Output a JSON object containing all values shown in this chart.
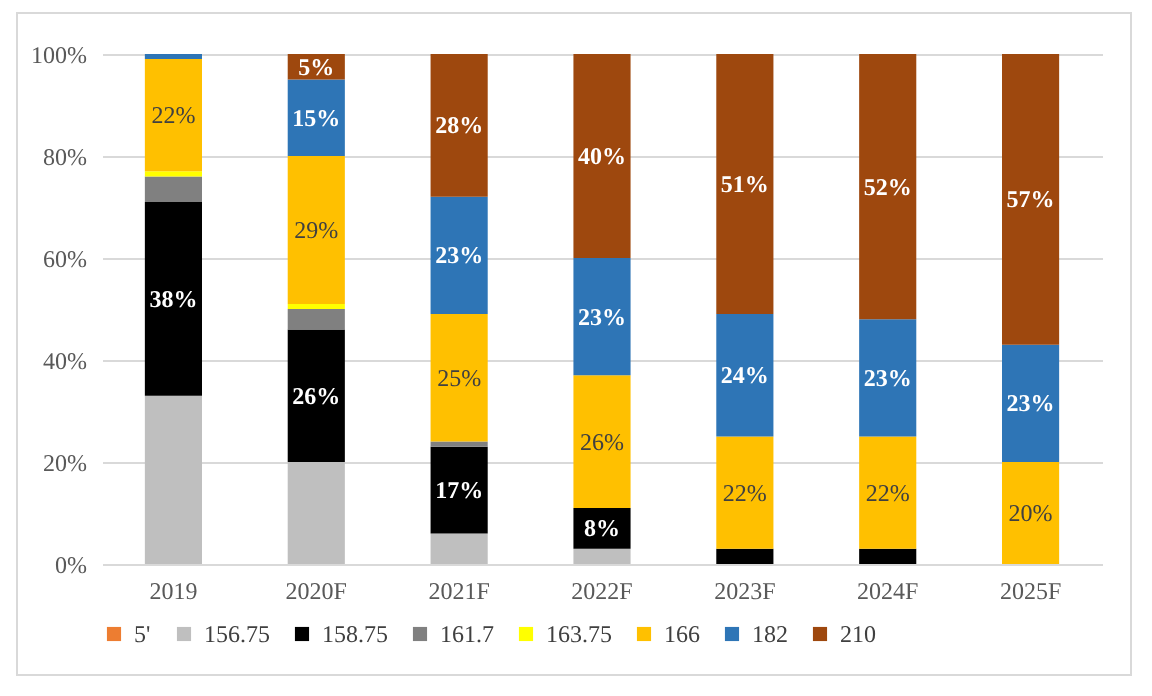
{
  "chart_data": {
    "type": "bar",
    "stacked": true,
    "categories": [
      "2019",
      "2020F",
      "2021F",
      "2022F",
      "2023F",
      "2024F",
      "2025F"
    ],
    "ylim": [
      0,
      100
    ],
    "yticks": [
      {
        "value": 0,
        "label": "0%"
      },
      {
        "value": 20,
        "label": "20%"
      },
      {
        "value": 40,
        "label": "40%"
      },
      {
        "value": 60,
        "label": "60%"
      },
      {
        "value": 80,
        "label": "80%"
      },
      {
        "value": 100,
        "label": "100%"
      }
    ],
    "grid": "y",
    "legend": "bottom",
    "series": [
      {
        "name": "5'",
        "color": "#ed7d31",
        "values": [
          0,
          0,
          0,
          0,
          0,
          0,
          0
        ]
      },
      {
        "name": "156.75",
        "color": "#bfbfbf",
        "values": [
          33,
          20,
          6,
          3,
          0,
          0,
          0
        ]
      },
      {
        "name": "158.75",
        "color": "#000000",
        "values": [
          38,
          26,
          17,
          8,
          3,
          3,
          0
        ],
        "value_labels": [
          "38%",
          "26%",
          "17%",
          "8%",
          null,
          null,
          null
        ]
      },
      {
        "name": "161.7",
        "color": "#808080",
        "values": [
          5,
          4,
          1,
          0,
          0,
          0,
          0
        ]
      },
      {
        "name": "163.75",
        "color": "#ffff00",
        "values": [
          1,
          1,
          0,
          0,
          0,
          0,
          0
        ]
      },
      {
        "name": "166",
        "color": "#ffc000",
        "values": [
          22,
          29,
          25,
          26,
          22,
          22,
          20
        ],
        "value_labels": [
          "22%",
          "29%",
          "25%",
          "26%",
          "22%",
          "22%",
          "20%"
        ]
      },
      {
        "name": "182",
        "color": "#2e75b6",
        "values": [
          1,
          15,
          23,
          23,
          24,
          23,
          23
        ],
        "value_labels": [
          null,
          "15%",
          "23%",
          "23%",
          "24%",
          "23%",
          "23%"
        ]
      },
      {
        "name": "210",
        "color": "#9e480e",
        "values": [
          0,
          5,
          28,
          40,
          51,
          52,
          57
        ],
        "value_labels": [
          null,
          "5%",
          "28%",
          "40%",
          "51%",
          "52%",
          "57%"
        ]
      }
    ]
  }
}
